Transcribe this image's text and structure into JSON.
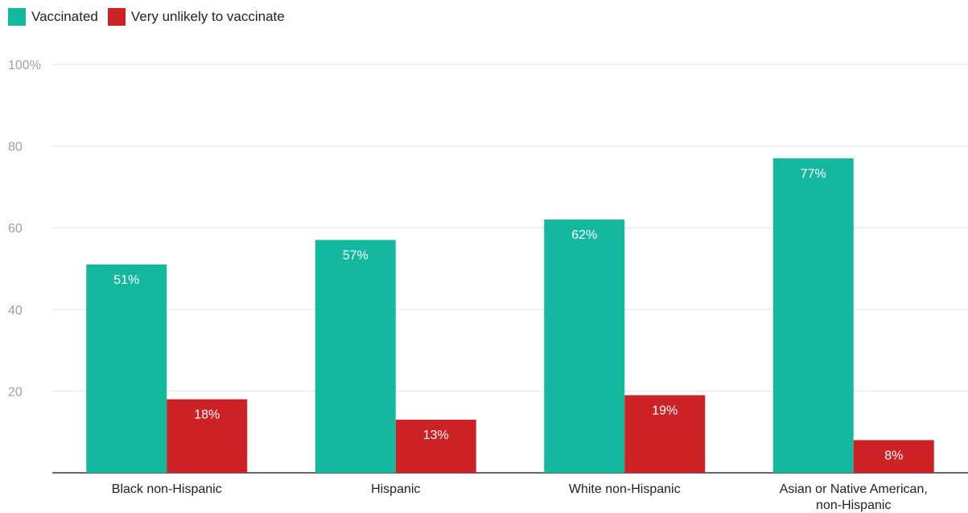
{
  "chart_data": {
    "type": "bar",
    "categories": [
      "Black non-Hispanic",
      "Hispanic",
      "White non-Hispanic",
      "Asian or Native American, non-Hispanic"
    ],
    "series": [
      {
        "name": "Vaccinated",
        "values": [
          51,
          57,
          62,
          77
        ],
        "labels": [
          "51%",
          "57%",
          "62%",
          "77%"
        ],
        "color": "#14b89e"
      },
      {
        "name": "Very unlikely to vaccinate",
        "values": [
          18,
          13,
          19,
          8
        ],
        "labels": [
          "18%",
          "13%",
          "19%",
          "8%"
        ],
        "color": "#cc2125"
      }
    ],
    "ylim": [
      0,
      100
    ],
    "yticks": [
      20,
      40,
      60,
      80,
      100
    ],
    "ytick_labels": [
      "20",
      "40",
      "60",
      "80",
      "100%"
    ],
    "grid": true,
    "legend_position": "top-left"
  }
}
